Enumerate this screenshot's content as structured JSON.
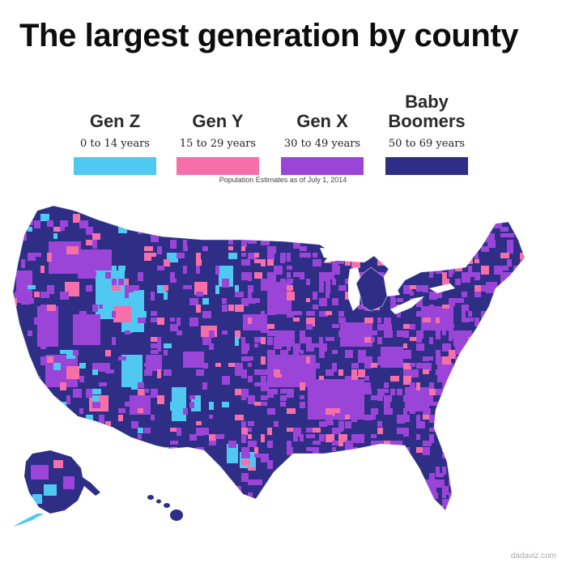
{
  "title": "The largest generation by county",
  "legend": [
    {
      "name": "Gen Z",
      "range": "0 to 14 years",
      "color": "#4fc8f2"
    },
    {
      "name": "Gen Y",
      "range": "15 to 29 years",
      "color": "#f66fa9"
    },
    {
      "name": "Gen X",
      "range": "30 to 49 years",
      "color": "#9a45d8"
    },
    {
      "name": "Baby\nBoomers",
      "range": "50 to 69 years",
      "color": "#2e2e86"
    }
  ],
  "note": "Population Estimates as of July 1, 2014",
  "credit": "dadaviz.com"
}
